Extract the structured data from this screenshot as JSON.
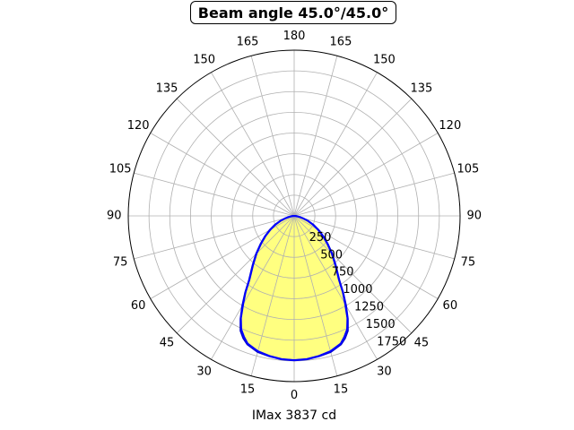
{
  "chart_data": {
    "type": "polar",
    "title": "Beam angle 45.0°/45.0°",
    "xlabel": "IMax 3837 cd",
    "angle_tick_labels": [
      "0",
      "15",
      "30",
      "45",
      "60",
      "75",
      "90",
      "105",
      "120",
      "135",
      "150",
      "165",
      "180",
      "165",
      "150",
      "135",
      "120",
      "105",
      "90",
      "75",
      "60",
      "45",
      "30",
      "15"
    ],
    "radial_ticks": [
      250,
      500,
      750,
      1000,
      1250,
      1500,
      1750
    ],
    "rlim": [
      0,
      2000
    ],
    "grid": true,
    "fill_color": "#ffff80",
    "line_colors": [
      "#0000cc",
      "#0000ff"
    ],
    "series": [
      {
        "angles": [
          0,
          5,
          10,
          15,
          20,
          22.5,
          25,
          27.5,
          30,
          32.5,
          35,
          40,
          45,
          50,
          55,
          60,
          65,
          70,
          75,
          80,
          85,
          90
        ],
        "values": [
          1743,
          1738,
          1720,
          1700,
          1650,
          1600,
          1530,
          1400,
          1250,
          1100,
          950,
          780,
          650,
          530,
          430,
          340,
          260,
          180,
          110,
          60,
          20,
          0
        ]
      },
      {
        "angles": [
          0,
          5,
          10,
          15,
          20,
          22.5,
          25,
          27.5,
          30,
          32.5,
          35,
          40,
          45,
          50,
          55,
          60,
          65,
          70,
          75,
          80,
          85,
          90
        ],
        "values": [
          1740,
          1735,
          1716,
          1690,
          1640,
          1580,
          1510,
          1390,
          1230,
          1090,
          940,
          770,
          640,
          520,
          420,
          330,
          250,
          175,
          105,
          55,
          18,
          0
        ]
      }
    ]
  }
}
